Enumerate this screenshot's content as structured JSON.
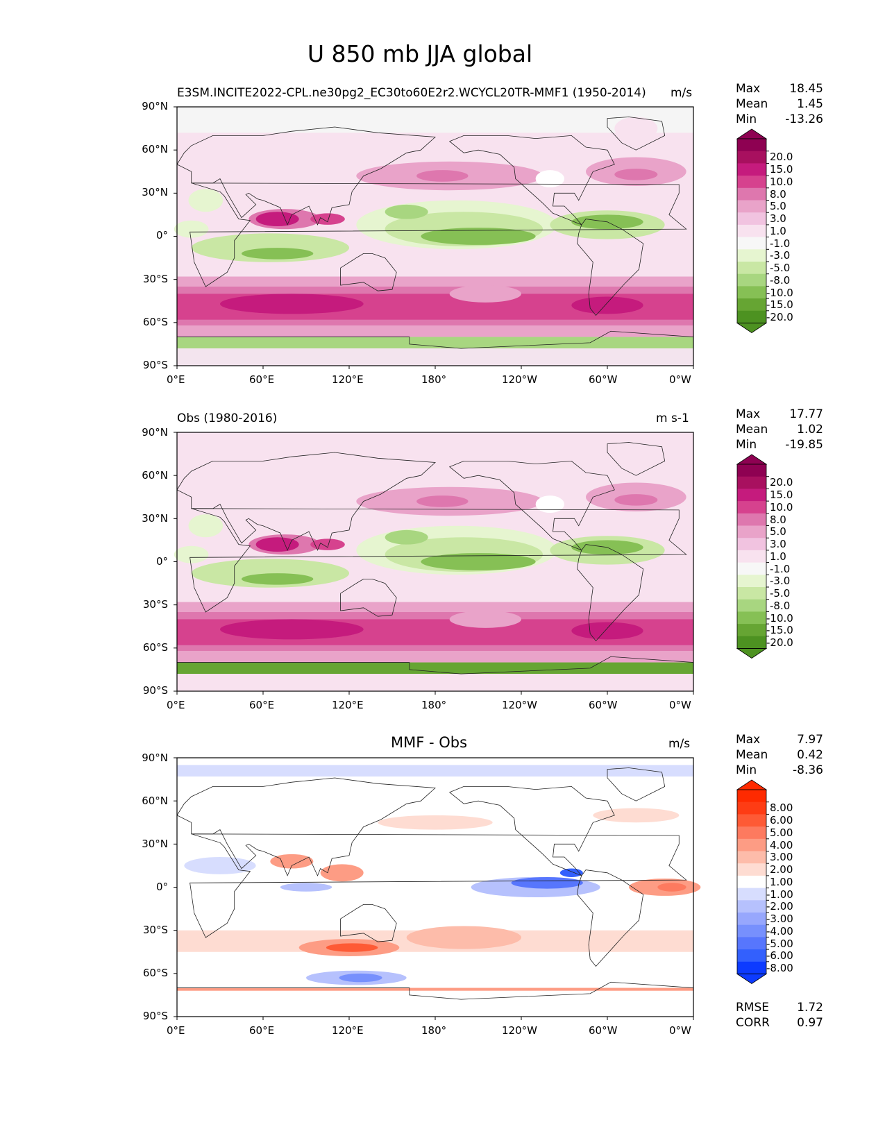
{
  "title": "U 850 mb JJA global",
  "lat_ticks": [
    "90°N",
    "60°N",
    "30°N",
    "0°",
    "30°S",
    "60°S",
    "90°S"
  ],
  "lon_ticks": [
    "0°E",
    "60°E",
    "120°E",
    "180°",
    "120°W",
    "60°W",
    "0°W"
  ],
  "panels": [
    {
      "left_title": "E3SM.INCITE2022-CPL.ne30pg2_EC30to60E2r2.WCYCL20TR-MMF1 (1950-2014)",
      "center_title": "",
      "units": "m/s",
      "stats": {
        "max_label": "Max",
        "max": "18.45",
        "mean_label": "Mean",
        "mean": "1.45",
        "min_label": "Min",
        "min": "-13.26"
      },
      "colorbar_labels": [
        "20.0",
        "15.0",
        "10.0",
        "8.0",
        "5.0",
        "3.0",
        "1.0",
        "-1.0",
        "-3.0",
        "-5.0",
        "-8.0",
        "-10.0",
        "-15.0",
        "-20.0"
      ]
    },
    {
      "left_title": "Obs (1980-2016)",
      "center_title": "",
      "units": "m s-1",
      "stats": {
        "max_label": "Max",
        "max": "17.77",
        "mean_label": "Mean",
        "mean": "1.02",
        "min_label": "Min",
        "min": "-19.85"
      },
      "colorbar_labels": [
        "20.0",
        "15.0",
        "10.0",
        "8.0",
        "5.0",
        "3.0",
        "1.0",
        "-1.0",
        "-3.0",
        "-5.0",
        "-8.0",
        "-10.0",
        "-15.0",
        "-20.0"
      ]
    },
    {
      "left_title": "",
      "center_title": "MMF - Obs",
      "units": "m/s",
      "stats": {
        "max_label": "Max",
        "max": "7.97",
        "mean_label": "Mean",
        "mean": "0.42",
        "min_label": "Min",
        "min": "-8.36"
      },
      "colorbar_labels": [
        "8.00",
        "6.00",
        "5.00",
        "4.00",
        "3.00",
        "2.00",
        "1.00",
        "-1.00",
        "-2.00",
        "-3.00",
        "-4.00",
        "-5.00",
        "-6.00",
        "-8.00"
      ],
      "metrics": {
        "rmse_label": "RMSE",
        "rmse": "1.72",
        "corr_label": "CORR",
        "corr": "0.97"
      }
    }
  ],
  "colors": {
    "pos_scale": [
      "#8e0152",
      "#c51b7d",
      "#d6428e",
      "#de77ae",
      "#e9a3c9",
      "#f1c3e0",
      "#f8e2ef",
      "#f7f7f7"
    ],
    "neg_scale": [
      "#f7f7f7",
      "#e6f5d0",
      "#c9e7a4",
      "#a8d680",
      "#86c055",
      "#66a533",
      "#4d9221",
      "#276419"
    ],
    "diff_pos": [
      "#fe2a00",
      "#fe5a35",
      "#fd7a5f",
      "#fd9c84",
      "#fdbcaa",
      "#fedcd2",
      "#ffffff"
    ],
    "diff_neg": [
      "#ffffff",
      "#d7ddfe",
      "#b6c1fd",
      "#97a7fd",
      "#7790fd",
      "#5776fd",
      "#3360fd",
      "#0d3bff"
    ]
  }
}
